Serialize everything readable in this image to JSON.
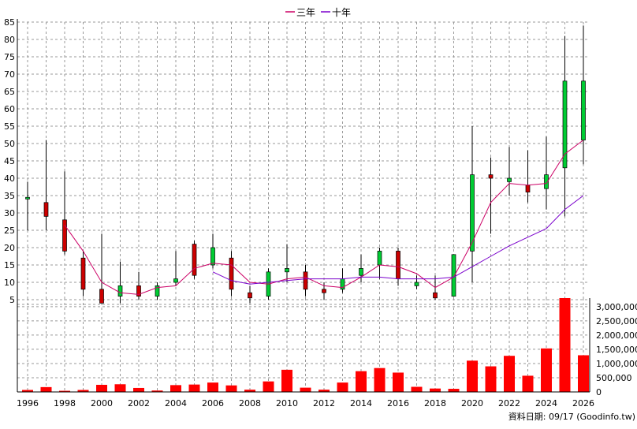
{
  "legend": {
    "items": [
      {
        "label": "三年",
        "color": "#cc0066"
      },
      {
        "label": "十年",
        "color": "#7a00cc"
      }
    ]
  },
  "source_text": "資料日期: 09/17 (Goodinfo.tw)",
  "chart_data": [
    {
      "type": "candlestick",
      "x": [
        1996,
        1997,
        1998,
        1999,
        2000,
        2001,
        2002,
        2003,
        2004,
        2005,
        2006,
        2007,
        2008,
        2009,
        2010,
        2011,
        2012,
        2013,
        2014,
        2015,
        2016,
        2017,
        2018,
        2019,
        2020,
        2021,
        2022,
        2023,
        2024,
        2025,
        2026
      ],
      "open": [
        34,
        33,
        28,
        17,
        8,
        6,
        9,
        6,
        10,
        21,
        15,
        17,
        7,
        6,
        13,
        13,
        8,
        8,
        12,
        15,
        19,
        9,
        7,
        6,
        19,
        41,
        39,
        38,
        37,
        43,
        51
      ],
      "close": [
        34.5,
        29,
        19,
        8,
        4,
        9,
        6,
        9,
        11,
        12,
        20,
        8,
        5.5,
        13,
        14,
        8,
        7,
        11,
        14,
        19,
        11,
        10,
        5.5,
        18,
        41,
        40,
        40,
        36,
        41,
        68,
        68
      ],
      "high": [
        39,
        51,
        42,
        19,
        24,
        16,
        13,
        10,
        19,
        22,
        24,
        19,
        9,
        14,
        21,
        15,
        10,
        14,
        18,
        20,
        20,
        12,
        12,
        18,
        55,
        46,
        49,
        48,
        52,
        81,
        84
      ],
      "low": [
        25,
        25,
        18,
        6,
        4,
        4,
        5,
        5,
        9,
        11,
        14,
        6,
        4,
        5,
        10,
        6,
        5,
        7,
        10,
        11,
        9,
        8,
        5,
        6,
        10,
        24,
        35,
        33,
        31,
        29,
        44
      ],
      "yaxis": {
        "min": 5,
        "max": 85,
        "ticks": [
          5,
          10,
          15,
          20,
          25,
          30,
          35,
          40,
          45,
          50,
          55,
          60,
          65,
          70,
          75,
          80,
          85
        ]
      },
      "colors": {
        "up": "#00cc33",
        "down": "#cc0000"
      },
      "series": [
        {
          "name": "三年",
          "color": "#cc0066",
          "values": [
            null,
            null,
            26.5,
            19,
            10,
            7,
            6.5,
            8.5,
            9,
            14,
            15.5,
            15,
            10,
            9.5,
            11,
            11.5,
            9,
            8.5,
            11.5,
            15,
            14.5,
            12.5,
            8.5,
            11.5,
            21.5,
            33,
            38.5,
            38,
            38.5,
            47,
            51
          ]
        },
        {
          "name": "十年",
          "color": "#7a00cc",
          "values": [
            null,
            null,
            null,
            null,
            null,
            null,
            null,
            null,
            null,
            null,
            13,
            10.5,
            9.5,
            10,
            10.5,
            11,
            11,
            11,
            11.5,
            11.5,
            11,
            11,
            11,
            11.5,
            14.5,
            17.5,
            20.5,
            23,
            25.5,
            31,
            35
          ]
        }
      ]
    },
    {
      "type": "bar",
      "x": [
        1996,
        1997,
        1998,
        1999,
        2000,
        2001,
        2002,
        2003,
        2004,
        2005,
        2006,
        2007,
        2008,
        2009,
        2010,
        2011,
        2012,
        2013,
        2014,
        2015,
        2016,
        2017,
        2018,
        2019,
        2020,
        2021,
        2022,
        2023,
        2024,
        2025,
        2026
      ],
      "values": [
        70000,
        170000,
        40000,
        70000,
        250000,
        270000,
        140000,
        50000,
        240000,
        260000,
        330000,
        230000,
        80000,
        370000,
        780000,
        150000,
        80000,
        330000,
        730000,
        840000,
        680000,
        180000,
        120000,
        110000,
        1100000,
        900000,
        1270000,
        570000,
        1530000,
        3300000,
        1290000
      ],
      "color": "#ff0000",
      "yaxis": {
        "min": 0,
        "max": 3300000,
        "tick_labels": [
          "0",
          "500,000",
          "1,000,000",
          "1,500,000",
          "2,000,000",
          "2,500,000",
          "3,000,000"
        ]
      }
    }
  ],
  "x_tick_labels": [
    "1996",
    "1998",
    "2000",
    "2002",
    "2004",
    "2006",
    "2008",
    "2010",
    "2012",
    "2014",
    "2016",
    "2018",
    "2020",
    "2022",
    "2024",
    "2026"
  ]
}
